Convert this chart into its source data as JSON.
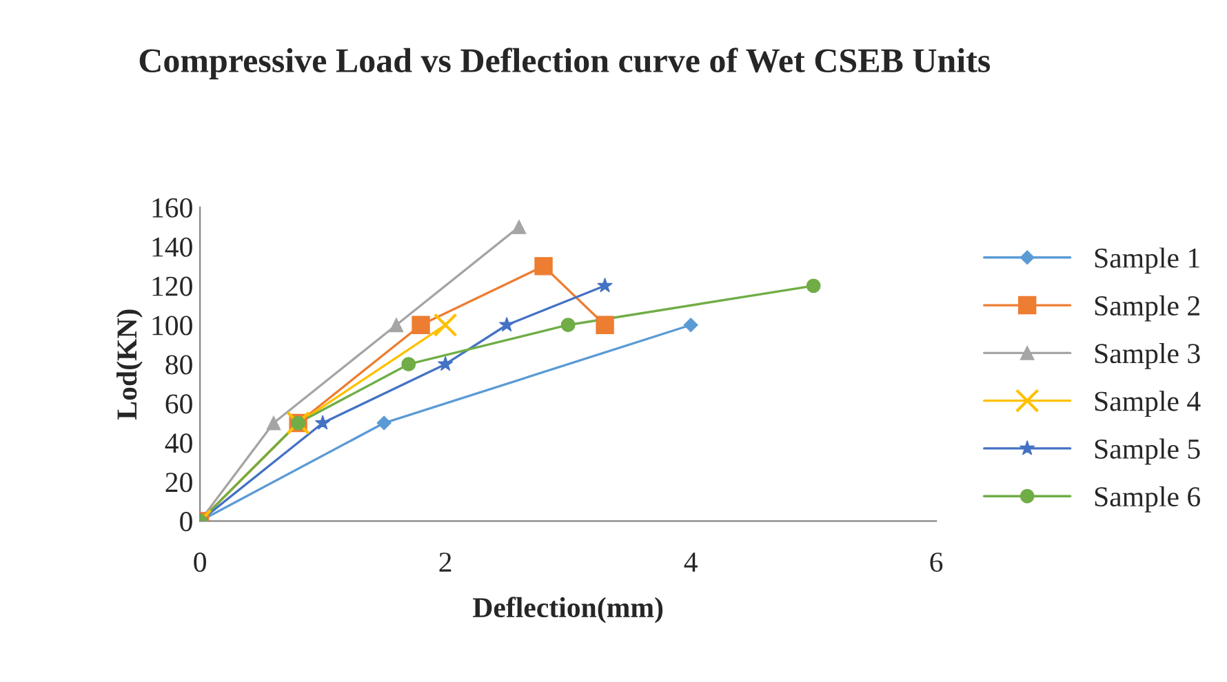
{
  "chart_data": {
    "type": "line",
    "title": "Compressive Load vs Deflection curve of Wet CSEB Units",
    "xlabel": "Deflection(mm)",
    "ylabel": "Lod(KN)",
    "xlim": [
      0,
      6
    ],
    "xticks": [
      0,
      2,
      4,
      6
    ],
    "ylim": [
      0,
      160
    ],
    "yticks": [
      0,
      20,
      40,
      60,
      80,
      100,
      120,
      140,
      160
    ],
    "grid": false,
    "legend": "right",
    "series": [
      {
        "name": "Sample 1",
        "color": "#5b9bd5",
        "marker": "diamond",
        "x": [
          0,
          1.5,
          4
        ],
        "values": [
          0,
          50,
          100
        ]
      },
      {
        "name": "Sample 2",
        "color": "#ed7d31",
        "marker": "square",
        "x": [
          0,
          0.8,
          1.8,
          2.8,
          3.3
        ],
        "values": [
          0,
          50,
          100,
          130,
          100
        ]
      },
      {
        "name": "Sample 3",
        "color": "#a5a5a5",
        "marker": "triangle",
        "x": [
          0,
          0.6,
          1.6,
          2.6
        ],
        "values": [
          0,
          50,
          100,
          150
        ]
      },
      {
        "name": "Sample 4",
        "color": "#ffc000",
        "marker": "cross",
        "x": [
          0,
          0.8,
          2
        ],
        "values": [
          0,
          50,
          100
        ]
      },
      {
        "name": "Sample 5",
        "color": "#4472c4",
        "marker": "star",
        "x": [
          0,
          1,
          2,
          2.5,
          3.3
        ],
        "values": [
          0,
          50,
          80,
          100,
          120
        ]
      },
      {
        "name": "Sample 6",
        "color": "#70ad47",
        "marker": "circle",
        "x": [
          0,
          0.8,
          1.7,
          3,
          5
        ],
        "values": [
          0,
          50,
          80,
          100,
          120
        ]
      }
    ]
  }
}
